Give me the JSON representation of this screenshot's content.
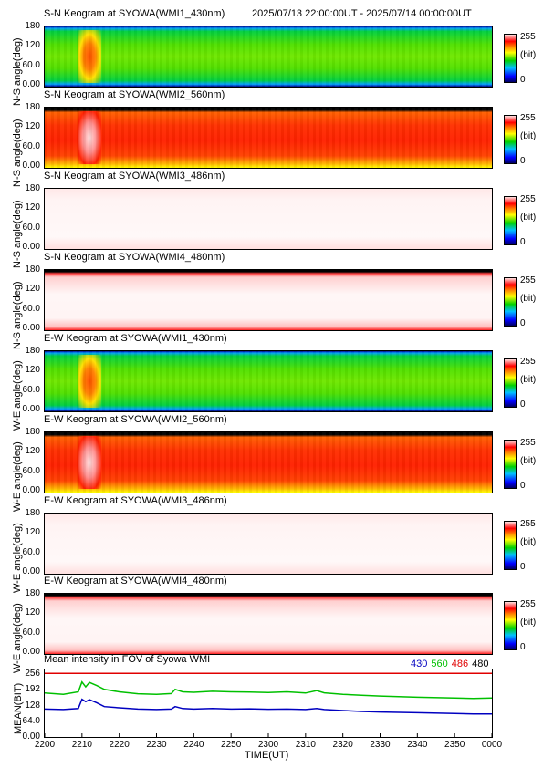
{
  "header": {
    "date_range": "2025/07/13 22:00:00UT - 2025/07/14 00:00:00UT"
  },
  "panels": [
    {
      "title": "S-N Keogram at SYOWA(WMI1_430nm)",
      "ylabel": "N-S angle(deg)",
      "style": "430"
    },
    {
      "title": "S-N Keogram at SYOWA(WMI2_560nm)",
      "ylabel": "N-S angle(deg)",
      "style": "560"
    },
    {
      "title": "S-N Keogram at SYOWA(WMI3_486nm)",
      "ylabel": "N-S angle(deg)",
      "style": "486"
    },
    {
      "title": "S-N Keogram at SYOWA(WMI4_480nm)",
      "ylabel": "N-S angle(deg)",
      "style": "480"
    },
    {
      "title": "E-W Keogram at SYOWA(WMI1_430nm)",
      "ylabel": "W-E angle(deg)",
      "style": "430"
    },
    {
      "title": "E-W Keogram at SYOWA(WMI2_560nm)",
      "ylabel": "W-E angle(deg)",
      "style": "560"
    },
    {
      "title": "E-W Keogram at SYOWA(WMI3_486nm)",
      "ylabel": "W-E angle(deg)",
      "style": "486"
    },
    {
      "title": "E-W Keogram at SYOWA(WMI4_480nm)",
      "ylabel": "W-E angle(deg)",
      "style": "480"
    }
  ],
  "keogram_yticks": [
    "180",
    "120",
    "60.0",
    "0.00"
  ],
  "colorbar": {
    "max": "255",
    "unit": "(bit)",
    "min": "0"
  },
  "mean_panel": {
    "title": "Mean intensity in FOV of Syowa WMI",
    "ylabel": "MEAN(BIT)",
    "yticks": [
      "256",
      "192",
      "128",
      "64.0",
      "0.00"
    ],
    "legend": [
      {
        "label": "430",
        "color": "#0000c0"
      },
      {
        "label": "560",
        "color": "#00c000"
      },
      {
        "label": "486",
        "color": "#e00000"
      },
      {
        "label": "480",
        "color": "#000000"
      }
    ]
  },
  "xaxis": {
    "label": "TIME(UT)",
    "ticks": [
      "2200",
      "2210",
      "2220",
      "2230",
      "2240",
      "2250",
      "2300",
      "2310",
      "2320",
      "2330",
      "2340",
      "2350",
      "0000"
    ]
  },
  "chart_data": {
    "type": "line",
    "title": "Mean intensity in FOV of Syowa WMI",
    "xlabel": "TIME(UT)",
    "ylabel": "MEAN(BIT)",
    "ylim": [
      0,
      256
    ],
    "x_minutes_after_2200": [
      0,
      5,
      9,
      10,
      11,
      12,
      14,
      16,
      20,
      25,
      30,
      34,
      35,
      37,
      40,
      45,
      50,
      55,
      60,
      65,
      70,
      73,
      75,
      80,
      85,
      90,
      100,
      110,
      115,
      120
    ],
    "series": [
      {
        "name": "430",
        "color": "#0000c0",
        "values": [
          110,
          108,
          112,
          150,
          140,
          148,
          135,
          120,
          115,
          110,
          108,
          110,
          120,
          112,
          110,
          112,
          110,
          111,
          109,
          110,
          108,
          112,
          108,
          104,
          100,
          98,
          95,
          92,
          90,
          90
        ]
      },
      {
        "name": "560",
        "color": "#00c000",
        "values": [
          175,
          170,
          180,
          220,
          200,
          218,
          205,
          190,
          180,
          172,
          170,
          173,
          190,
          180,
          178,
          182,
          180,
          179,
          177,
          180,
          175,
          185,
          176,
          170,
          166,
          163,
          158,
          155,
          153,
          155
        ]
      },
      {
        "name": "486",
        "color": "#e00000",
        "values": [
          255,
          255,
          255,
          255,
          255,
          255,
          255,
          255,
          255,
          255,
          255,
          255,
          255,
          255,
          255,
          255,
          255,
          255,
          255,
          255,
          255,
          255,
          255,
          255,
          255,
          255,
          255,
          255,
          255,
          255
        ]
      },
      {
        "name": "480",
        "color": "#000000",
        "values": [
          255,
          255,
          255,
          255,
          255,
          255,
          255,
          255,
          255,
          255,
          255,
          255,
          255,
          255,
          255,
          255,
          255,
          255,
          255,
          255,
          255,
          255,
          255,
          255,
          255,
          255,
          255,
          255,
          255,
          255
        ]
      }
    ]
  }
}
